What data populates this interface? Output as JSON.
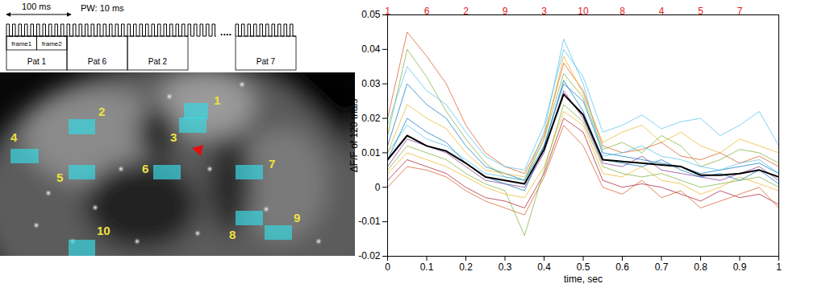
{
  "timing_diagram": {
    "period_label": "100 ms",
    "pulse_width_label": "PW: 10 ms",
    "frame_labels": [
      "frame1",
      "frame2"
    ],
    "patterns": [
      "Pat 1",
      "Pat 6",
      "Pat 2",
      "Pat 7"
    ],
    "ellipsis": "...."
  },
  "image": {
    "region_labels": [
      "1",
      "2",
      "3",
      "4",
      "5",
      "6",
      "7",
      "8",
      "9",
      "10"
    ]
  },
  "chart_data": {
    "type": "line",
    "xlabel": "time, sec",
    "ylabel": "ΔF/F of 120 trials",
    "x": [
      0,
      0.05,
      0.1,
      0.15,
      0.2,
      0.25,
      0.3,
      0.35,
      0.4,
      0.45,
      0.5,
      0.55,
      0.6,
      0.65,
      0.7,
      0.75,
      0.8,
      0.85,
      0.9,
      0.95,
      1
    ],
    "xlim": [
      0,
      1
    ],
    "ylim": [
      -0.02,
      0.05
    ],
    "xticks": [
      0,
      0.1,
      0.2,
      0.3,
      0.4,
      0.5,
      0.6,
      0.7,
      0.8,
      0.9,
      1
    ],
    "yticks": [
      -0.02,
      -0.01,
      0,
      0.01,
      0.02,
      0.03,
      0.04,
      0.05
    ],
    "x2ticks": [
      {
        "value": 0,
        "label": "1"
      },
      {
        "value": 0.1,
        "label": "6"
      },
      {
        "value": 0.2,
        "label": "2"
      },
      {
        "value": 0.3,
        "label": "9"
      },
      {
        "value": 0.4,
        "label": "3"
      },
      {
        "value": 0.5,
        "label": "10"
      },
      {
        "value": 0.6,
        "label": "8"
      },
      {
        "value": 0.7,
        "label": "4"
      },
      {
        "value": 0.8,
        "label": "5"
      },
      {
        "value": 0.9,
        "label": "7"
      }
    ],
    "grid": false,
    "series": [
      {
        "color": "#0072BD",
        "values": [
          0.012,
          0.03,
          0.024,
          0.02,
          0.012,
          0.006,
          0.004,
          0.002,
          0.012,
          0.03,
          0.025,
          0.01,
          0.009,
          0.008,
          0.007,
          0.006,
          0.004,
          0.005,
          0.006,
          0.007,
          0.004
        ]
      },
      {
        "color": "#D95319",
        "values": [
          0.02,
          0.045,
          0.038,
          0.03,
          0.018,
          0.01,
          0.006,
          0.004,
          0.015,
          0.036,
          0.028,
          0.012,
          0.01,
          0.011,
          0.013,
          0.009,
          0.008,
          0.01,
          0.007,
          0.009,
          0.006
        ]
      },
      {
        "color": "#EDB120",
        "values": [
          0.004,
          0.01,
          0.008,
          0.006,
          0.003,
          0.0,
          -0.002,
          -0.003,
          0.006,
          0.022,
          0.018,
          0.004,
          0.003,
          0.006,
          0.002,
          0.001,
          -0.002,
          0.0,
          0.003,
          0.001,
          -0.001
        ]
      },
      {
        "color": "#7E2F8E",
        "values": [
          0.006,
          0.014,
          0.012,
          0.01,
          0.006,
          0.002,
          0.001,
          0.0,
          0.01,
          0.028,
          0.02,
          0.007,
          0.006,
          0.009,
          0.005,
          0.004,
          0.003,
          0.002,
          0.004,
          0.006,
          0.002
        ]
      },
      {
        "color": "#77AC30",
        "values": [
          0.015,
          0.04,
          0.032,
          0.022,
          0.014,
          0.007,
          0.003,
          0.002,
          0.014,
          0.033,
          0.026,
          0.011,
          0.013,
          0.01,
          0.015,
          0.012,
          0.006,
          0.008,
          0.011,
          0.01,
          0.007
        ]
      },
      {
        "color": "#4DBEEE",
        "values": [
          0.01,
          0.018,
          0.014,
          0.012,
          0.008,
          0.004,
          0.003,
          0.002,
          0.016,
          0.043,
          0.03,
          0.009,
          0.01,
          0.012,
          0.009,
          0.008,
          0.006,
          0.005,
          0.007,
          0.008,
          0.004
        ]
      },
      {
        "color": "#A2142F",
        "values": [
          0.002,
          0.008,
          0.006,
          0.004,
          0.0,
          -0.003,
          -0.004,
          -0.006,
          0.004,
          0.02,
          0.016,
          0.002,
          0.0,
          0.001,
          0.0,
          -0.002,
          -0.004,
          -0.001,
          -0.003,
          -0.002,
          -0.005
        ]
      },
      {
        "color": "#0072BD",
        "values": [
          0.008,
          0.02,
          0.016,
          0.013,
          0.007,
          0.003,
          0.001,
          -0.001,
          0.012,
          0.031,
          0.022,
          0.008,
          0.007,
          0.006,
          0.008,
          0.005,
          0.003,
          0.004,
          0.002,
          0.005,
          0.001
        ]
      },
      {
        "color": "#D95319",
        "values": [
          0.0,
          0.006,
          0.005,
          0.003,
          -0.001,
          -0.004,
          -0.006,
          -0.008,
          0.003,
          0.018,
          0.012,
          0.0,
          -0.002,
          0.002,
          -0.003,
          -0.001,
          -0.006,
          -0.004,
          -0.002,
          0.0,
          -0.006
        ]
      },
      {
        "color": "#EDB120",
        "values": [
          0.01,
          0.024,
          0.02,
          0.017,
          0.01,
          0.005,
          0.004,
          0.003,
          0.014,
          0.038,
          0.027,
          0.013,
          0.016,
          0.018,
          0.013,
          0.016,
          0.012,
          0.01,
          0.014,
          0.012,
          0.01
        ]
      },
      {
        "color": "#77AC30",
        "values": [
          0.005,
          0.012,
          0.01,
          0.008,
          0.004,
          0.001,
          -0.001,
          -0.014,
          0.005,
          0.024,
          0.019,
          0.006,
          0.004,
          0.003,
          0.004,
          0.002,
          0.0,
          0.001,
          0.002,
          0.003,
          0.0
        ]
      },
      {
        "color": "#4DBEEE",
        "values": [
          0.018,
          0.035,
          0.028,
          0.024,
          0.016,
          0.009,
          0.006,
          0.005,
          0.018,
          0.04,
          0.032,
          0.016,
          0.018,
          0.021,
          0.017,
          0.019,
          0.02,
          0.015,
          0.018,
          0.022,
          0.012
        ]
      },
      {
        "color": "black",
        "values": [
          0.008,
          0.015,
          0.012,
          0.0105,
          0.007,
          0.003,
          0.002,
          0.001,
          0.011,
          0.027,
          0.021,
          0.008,
          0.0075,
          0.007,
          0.0065,
          0.006,
          0.0035,
          0.0035,
          0.004,
          0.005,
          0.003
        ]
      }
    ]
  }
}
